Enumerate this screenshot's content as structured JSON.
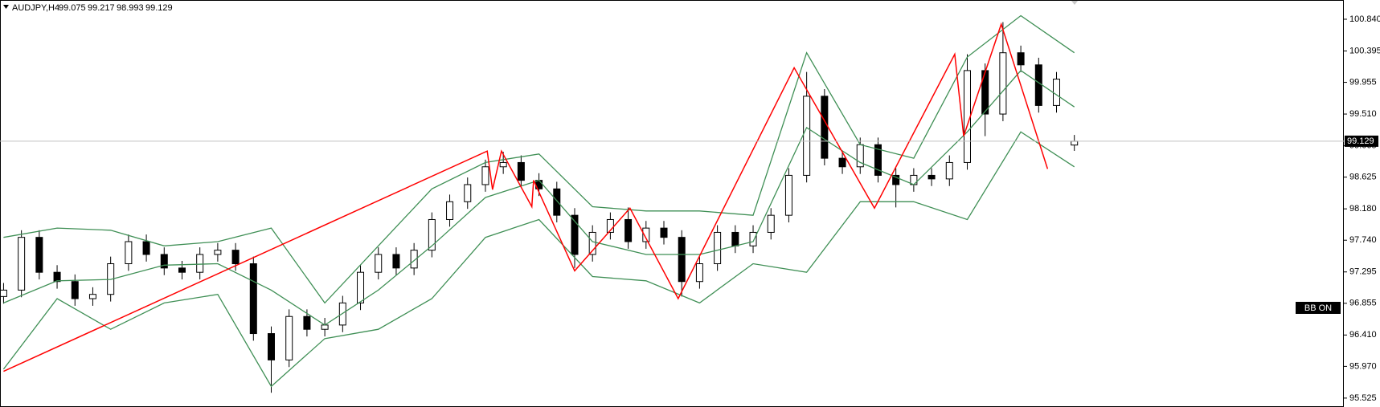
{
  "chart_data": {
    "type": "candlestick",
    "title": "AUDJPY,H4",
    "indicator_label": "BB ON",
    "ylim": [
      95.4,
      101.11
    ],
    "xlim": [
      -0.2,
      75.1
    ],
    "yticks": [
      {
        "value": 100.84,
        "label": "100.840"
      },
      100.395,
      99.955,
      {
        "value": 99.51,
        "label": "99.510"
      },
      99.065,
      98.625,
      {
        "value": 98.18,
        "label": "98.180"
      },
      {
        "value": 97.74,
        "label": "97.740"
      },
      97.295,
      96.855,
      {
        "value": 96.41,
        "label": "96.410"
      },
      {
        "value": 95.97,
        "label": "95.970"
      },
      95.525
    ],
    "candles": {
      "up_color": "#ffffff",
      "down_color": "#000000",
      "line_color": "#000000",
      "open": [
        96.95,
        97.04,
        97.78,
        97.29,
        97.16,
        96.92,
        96.98,
        97.41,
        97.72,
        97.54,
        97.35,
        97.29,
        97.54,
        97.6,
        97.41,
        96.43,
        96.06,
        96.67,
        96.49,
        96.55,
        96.86,
        97.29,
        97.54,
        97.35,
        97.6,
        98.03,
        98.28,
        98.52,
        98.77,
        98.83,
        98.58,
        98.46,
        98.09,
        97.54,
        97.85,
        98.03,
        97.72,
        97.91,
        97.78,
        97.16,
        97.41,
        97.85,
        97.66,
        97.85,
        98.09,
        98.65,
        99.76,
        98.89,
        98.77,
        99.08,
        98.65,
        98.52,
        98.65,
        98.6,
        98.83,
        100.12,
        99.51,
        100.37,
        100.2,
        99.63,
        99.075
      ],
      "high": [
        97.14,
        97.88,
        97.88,
        97.39,
        97.26,
        97.08,
        97.51,
        97.82,
        97.82,
        97.64,
        97.45,
        97.64,
        97.7,
        97.7,
        97.51,
        96.53,
        96.77,
        96.77,
        96.65,
        96.96,
        97.39,
        97.64,
        97.64,
        97.7,
        98.13,
        98.38,
        98.62,
        98.87,
        98.98,
        98.93,
        98.68,
        98.56,
        98.19,
        97.95,
        98.13,
        98.2,
        98.01,
        98.01,
        97.88,
        97.51,
        97.95,
        97.95,
        97.95,
        98.19,
        98.75,
        100.1,
        99.86,
        98.99,
        99.18,
        99.18,
        98.75,
        98.75,
        98.75,
        98.93,
        100.35,
        100.22,
        100.8,
        100.47,
        100.3,
        100.1,
        99.217
      ],
      "low": [
        96.85,
        96.94,
        97.19,
        97.06,
        96.82,
        96.82,
        96.88,
        97.31,
        97.44,
        97.25,
        97.19,
        97.19,
        97.44,
        97.31,
        96.33,
        95.6,
        95.96,
        96.39,
        96.39,
        96.45,
        96.76,
        97.19,
        97.25,
        97.25,
        97.5,
        97.93,
        98.18,
        98.42,
        98.67,
        98.48,
        98.36,
        97.99,
        97.35,
        97.44,
        97.75,
        97.62,
        97.62,
        97.68,
        96.95,
        97.06,
        97.31,
        97.56,
        97.56,
        97.75,
        97.99,
        98.55,
        98.79,
        98.67,
        98.67,
        98.55,
        98.2,
        98.42,
        98.5,
        98.5,
        98.73,
        99.2,
        99.41,
        100.1,
        99.53,
        99.53,
        98.993
      ],
      "close": [
        97.04,
        97.78,
        97.29,
        97.16,
        96.92,
        96.98,
        97.41,
        97.72,
        97.54,
        97.35,
        97.29,
        97.54,
        97.6,
        97.41,
        96.43,
        96.06,
        96.67,
        96.49,
        96.55,
        96.86,
        97.29,
        97.54,
        97.35,
        97.6,
        98.03,
        98.28,
        98.52,
        98.77,
        98.83,
        98.58,
        98.46,
        98.09,
        97.54,
        97.85,
        98.03,
        97.72,
        97.91,
        97.78,
        97.16,
        97.41,
        97.85,
        97.66,
        97.85,
        98.09,
        98.65,
        99.76,
        98.89,
        98.77,
        99.08,
        98.65,
        98.52,
        98.65,
        98.6,
        98.83,
        100.12,
        99.51,
        100.37,
        100.2,
        99.63,
        100.0,
        99.129
      ]
    },
    "bands": {
      "color": "#3f8f55",
      "x": [
        0,
        3,
        6,
        9,
        12,
        15,
        18,
        21,
        24,
        27,
        30,
        33,
        36,
        39,
        42,
        45,
        48,
        51,
        54,
        57,
        60
      ],
      "upper": [
        97.78,
        97.91,
        97.88,
        97.66,
        97.72,
        97.91,
        96.86,
        97.66,
        98.46,
        98.83,
        98.95,
        98.21,
        98.15,
        98.15,
        98.09,
        100.37,
        99.08,
        98.89,
        100.31,
        100.89,
        100.37
      ],
      "middle": [
        96.86,
        97.17,
        97.19,
        97.39,
        97.41,
        97.04,
        96.55,
        97.04,
        97.66,
        98.34,
        98.58,
        97.72,
        97.54,
        97.54,
        97.72,
        99.32,
        98.83,
        98.52,
        99.26,
        100.12,
        99.61
      ],
      "lower": [
        95.93,
        96.92,
        96.49,
        96.86,
        96.98,
        95.69,
        96.36,
        96.49,
        96.92,
        97.78,
        98.03,
        97.23,
        97.17,
        96.86,
        97.41,
        97.29,
        98.28,
        98.28,
        98.03,
        99.26,
        98.77
      ]
    },
    "zigzag": {
      "color": "#ff0000",
      "x": [
        0,
        27.1,
        27.4,
        27.9,
        29.6,
        29.7,
        32.0,
        35.1,
        37.8,
        44.3,
        48.8,
        53.3,
        53.8,
        55.9,
        58.5
      ],
      "values": [
        95.9,
        98.99,
        98.45,
        98.99,
        98.21,
        98.58,
        97.31,
        98.19,
        96.92,
        100.16,
        98.19,
        100.35,
        99.2,
        100.77,
        98.74
      ]
    }
  }
}
